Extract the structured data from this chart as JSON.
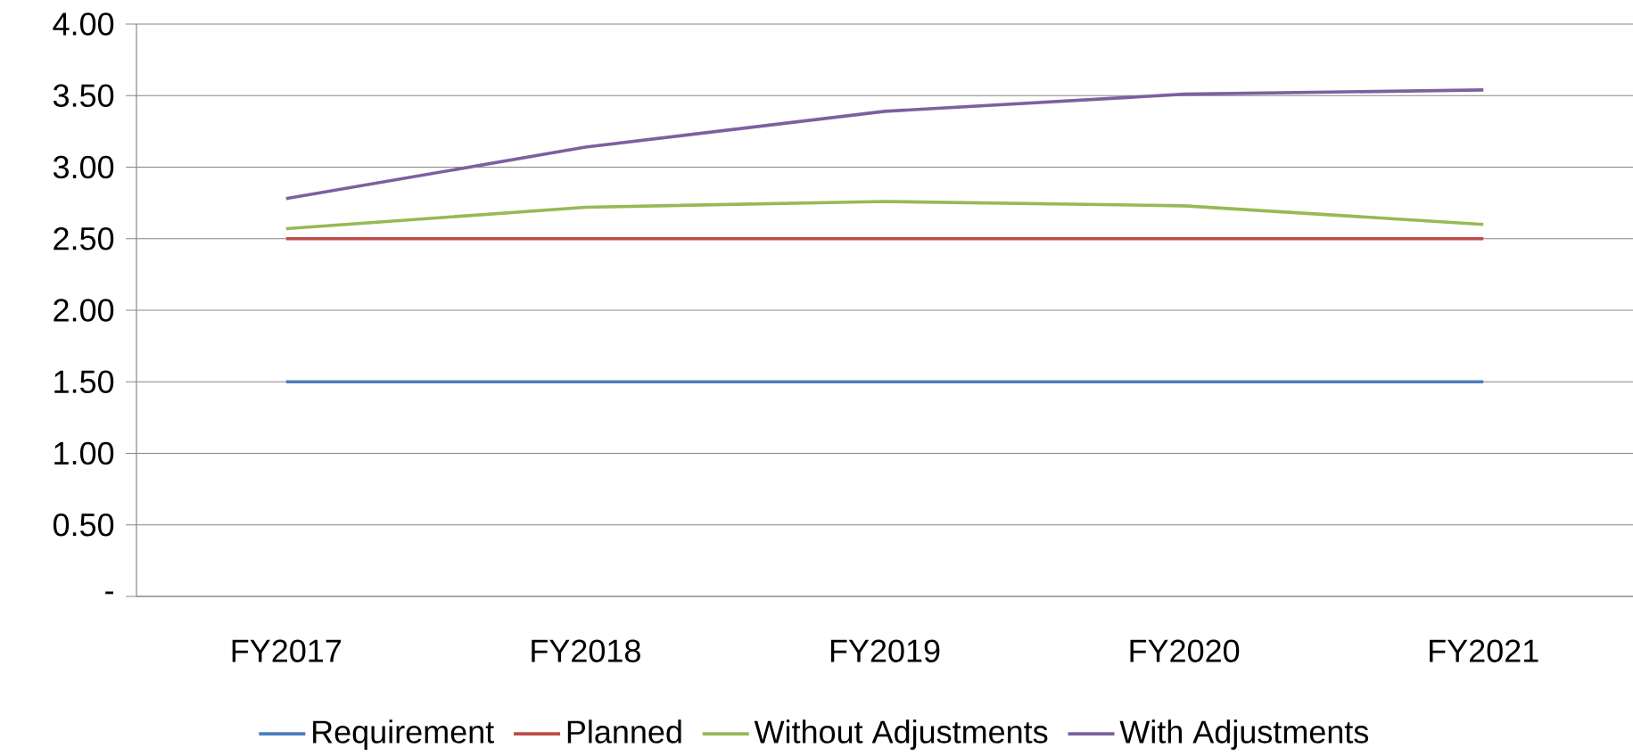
{
  "chart_data": {
    "type": "line",
    "categories": [
      "FY2017",
      "FY2018",
      "FY2019",
      "FY2020",
      "FY2021"
    ],
    "series": [
      {
        "name": "Requirement",
        "color": "#4a7ebb",
        "values": [
          1.5,
          1.5,
          1.5,
          1.5,
          1.5
        ]
      },
      {
        "name": "Planned",
        "color": "#be4b48",
        "values": [
          2.5,
          2.5,
          2.5,
          2.5,
          2.5
        ]
      },
      {
        "name": "Without Adjustments",
        "color": "#98b954",
        "values": [
          2.57,
          2.72,
          2.76,
          2.73,
          2.6
        ]
      },
      {
        "name": "With Adjustments",
        "color": "#7d60a0",
        "values": [
          2.78,
          3.14,
          3.39,
          3.51,
          3.54
        ]
      }
    ],
    "ylim": [
      0,
      4
    ],
    "yticks": [
      {
        "value": 0,
        "label": "-"
      },
      {
        "value": 0.5,
        "label": "0.50"
      },
      {
        "value": 1,
        "label": "1.00"
      },
      {
        "value": 1.5,
        "label": "1.50"
      },
      {
        "value": 2,
        "label": "2.00"
      },
      {
        "value": 2.5,
        "label": "2.50"
      },
      {
        "value": 3,
        "label": "3.00"
      },
      {
        "value": 3.5,
        "label": "3.50"
      },
      {
        "value": 4,
        "label": "4.00"
      }
    ],
    "grid": "y",
    "legend": "bottom"
  }
}
